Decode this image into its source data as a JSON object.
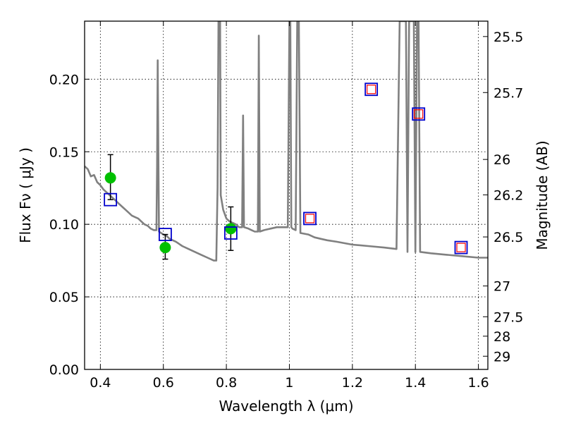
{
  "chart_data": {
    "type": "scatter",
    "xlabel": "Wavelength  λ (μm)",
    "ylabel": "Flux  Fν  ( μJy )",
    "ylabel_right": "Magnitude (AB)",
    "xlim": [
      0.35,
      1.63
    ],
    "ylim": [
      0.0,
      0.24
    ],
    "grid": true,
    "x_ticks": [
      0.4,
      0.6,
      0.8,
      1.0,
      1.2,
      1.4,
      1.6
    ],
    "x_tick_labels": [
      "0.4",
      "0.6",
      "0.8",
      "1",
      "1.2",
      "1.4",
      "1.6"
    ],
    "y_ticks": [
      0.0,
      0.05,
      0.1,
      0.15,
      0.2
    ],
    "y_tick_labels": [
      "0.00",
      "0.05",
      "0.10",
      "0.15",
      "0.20"
    ],
    "y2_ticks": [
      {
        "label": "25.5",
        "flux": 0.2294
      },
      {
        "label": "25.7",
        "flux": 0.1908
      },
      {
        "label": "26",
        "flux": 0.1447
      },
      {
        "label": "26.2",
        "flux": 0.1203
      },
      {
        "label": "26.5",
        "flux": 0.0913
      },
      {
        "label": "27",
        "flux": 0.0575
      },
      {
        "label": "27.5",
        "flux": 0.0363
      },
      {
        "label": "28",
        "flux": 0.0229
      },
      {
        "label": "29",
        "flux": 0.0091
      }
    ],
    "series": [
      {
        "kind": "spectrum",
        "color": "#808080",
        "points": [
          [
            0.35,
            0.14
          ],
          [
            0.36,
            0.138
          ],
          [
            0.37,
            0.133
          ],
          [
            0.38,
            0.134
          ],
          [
            0.39,
            0.129
          ],
          [
            0.4,
            0.127
          ],
          [
            0.41,
            0.124
          ],
          [
            0.42,
            0.122
          ],
          [
            0.43,
            0.12
          ],
          [
            0.44,
            0.118
          ],
          [
            0.45,
            0.116
          ],
          [
            0.46,
            0.114
          ],
          [
            0.47,
            0.112
          ],
          [
            0.48,
            0.11
          ],
          [
            0.49,
            0.108
          ],
          [
            0.5,
            0.106
          ],
          [
            0.51,
            0.105
          ],
          [
            0.52,
            0.104
          ],
          [
            0.53,
            0.102
          ],
          [
            0.54,
            0.1
          ],
          [
            0.55,
            0.099
          ],
          [
            0.56,
            0.097
          ],
          [
            0.57,
            0.096
          ],
          [
            0.578,
            0.096
          ],
          [
            0.58,
            0.14
          ],
          [
            0.582,
            0.213
          ],
          [
            0.584,
            0.15
          ],
          [
            0.586,
            0.095
          ],
          [
            0.6,
            0.093
          ],
          [
            0.61,
            0.092
          ],
          [
            0.62,
            0.09
          ],
          [
            0.64,
            0.088
          ],
          [
            0.66,
            0.085
          ],
          [
            0.68,
            0.083
          ],
          [
            0.7,
            0.081
          ],
          [
            0.72,
            0.079
          ],
          [
            0.74,
            0.077
          ],
          [
            0.76,
            0.075
          ],
          [
            0.768,
            0.075
          ],
          [
            0.772,
            0.125
          ],
          [
            0.775,
            0.24
          ],
          [
            0.78,
            0.24
          ],
          [
            0.782,
            0.12
          ],
          [
            0.79,
            0.11
          ],
          [
            0.8,
            0.104
          ],
          [
            0.81,
            0.102
          ],
          [
            0.82,
            0.101
          ],
          [
            0.83,
            0.1
          ],
          [
            0.84,
            0.098
          ],
          [
            0.85,
            0.098
          ],
          [
            0.853,
            0.175
          ],
          [
            0.856,
            0.098
          ],
          [
            0.87,
            0.097
          ],
          [
            0.88,
            0.096
          ],
          [
            0.89,
            0.095
          ],
          [
            0.9,
            0.095
          ],
          [
            0.903,
            0.23
          ],
          [
            0.906,
            0.095
          ],
          [
            0.92,
            0.096
          ],
          [
            0.94,
            0.097
          ],
          [
            0.96,
            0.098
          ],
          [
            0.98,
            0.098
          ],
          [
            0.995,
            0.098
          ],
          [
            1.0,
            0.24
          ],
          [
            1.003,
            0.24
          ],
          [
            1.006,
            0.098
          ],
          [
            1.01,
            0.097
          ],
          [
            1.02,
            0.096
          ],
          [
            1.025,
            0.24
          ],
          [
            1.03,
            0.24
          ],
          [
            1.035,
            0.094
          ],
          [
            1.06,
            0.093
          ],
          [
            1.08,
            0.091
          ],
          [
            1.1,
            0.09
          ],
          [
            1.12,
            0.089
          ],
          [
            1.15,
            0.088
          ],
          [
            1.2,
            0.086
          ],
          [
            1.25,
            0.085
          ],
          [
            1.3,
            0.084
          ],
          [
            1.34,
            0.083
          ],
          [
            1.35,
            0.24
          ],
          [
            1.37,
            0.24
          ],
          [
            1.375,
            0.081
          ],
          [
            1.38,
            0.24
          ],
          [
            1.395,
            0.24
          ],
          [
            1.4,
            0.081
          ],
          [
            1.405,
            0.24
          ],
          [
            1.41,
            0.24
          ],
          [
            1.415,
            0.081
          ],
          [
            1.45,
            0.08
          ],
          [
            1.5,
            0.079
          ],
          [
            1.55,
            0.078
          ],
          [
            1.6,
            0.077
          ],
          [
            1.63,
            0.077
          ]
        ]
      },
      {
        "kind": "observed",
        "color": "#00c000",
        "points": [
          {
            "x": 0.432,
            "y": 0.132,
            "err": [
              0.117,
              0.148
            ]
          },
          {
            "x": 0.606,
            "y": 0.084,
            "err": [
              0.076,
              0.093
            ]
          },
          {
            "x": 0.814,
            "y": 0.097,
            "err": [
              0.082,
              0.112
            ]
          }
        ]
      },
      {
        "kind": "model_box",
        "color": "#0000cc",
        "points": [
          {
            "x": 0.432,
            "y": 0.117
          },
          {
            "x": 0.606,
            "y": 0.093
          },
          {
            "x": 0.814,
            "y": 0.094
          },
          {
            "x": 1.065,
            "y": 0.104
          },
          {
            "x": 1.26,
            "y": 0.193
          },
          {
            "x": 1.41,
            "y": 0.176
          },
          {
            "x": 1.545,
            "y": 0.084
          }
        ]
      },
      {
        "kind": "model_inner",
        "color": "#ff0000",
        "points": [
          {
            "x": 1.065,
            "y": 0.104
          },
          {
            "x": 1.26,
            "y": 0.193
          },
          {
            "x": 1.41,
            "y": 0.176
          },
          {
            "x": 1.545,
            "y": 0.084
          }
        ]
      }
    ]
  }
}
